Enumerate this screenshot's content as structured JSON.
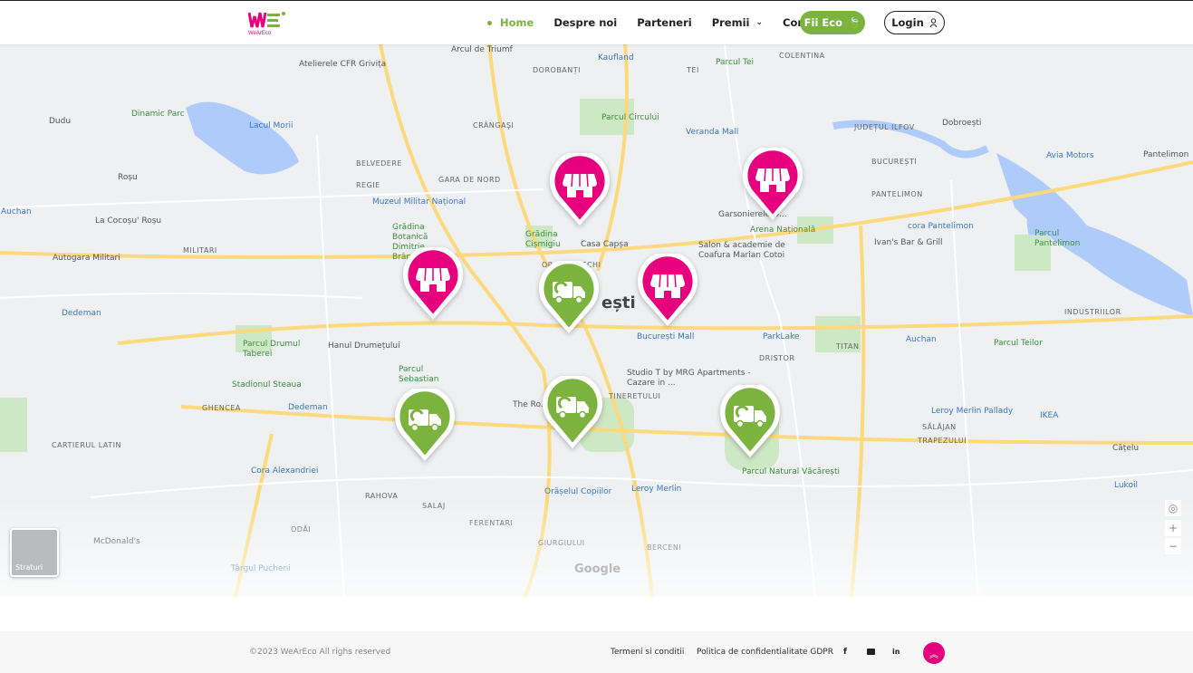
{
  "brand": {
    "name": "WeArEco",
    "pink": "#e6007e",
    "green": "#7cb33f"
  },
  "nav": {
    "items": [
      {
        "label": "Home",
        "active": true
      },
      {
        "label": "Despre noi"
      },
      {
        "label": "Parteneri"
      },
      {
        "label": "Premii",
        "has_dropdown": true
      },
      {
        "label": "Contact"
      }
    ],
    "cta": "Fii Eco",
    "login": "Login"
  },
  "map": {
    "city_label": "ești",
    "labels": [
      {
        "t": "Arcul de Triumf",
        "c": ""
      },
      {
        "t": "Kaufland",
        "c": "blue"
      },
      {
        "t": "Parcul Tei",
        "c": "green"
      },
      {
        "t": "COLENTINA",
        "c": "up"
      },
      {
        "t": "Atelierele CFR Grivița",
        "c": ""
      },
      {
        "t": "DOROBANȚI",
        "c": "up"
      },
      {
        "t": "TEI",
        "c": "up"
      },
      {
        "t": "Parcul Circului",
        "c": "green"
      },
      {
        "t": "Dinamic Parc",
        "c": "green"
      },
      {
        "t": "Lacul Morii",
        "c": "blue"
      },
      {
        "t": "CRÂNGAȘI",
        "c": "up"
      },
      {
        "t": "Veranda Mall",
        "c": "blue"
      },
      {
        "t": "JUDEȚUL ILFOV",
        "c": "up"
      },
      {
        "t": "Dobroești",
        "c": ""
      },
      {
        "t": "Dudu",
        "c": ""
      },
      {
        "t": "BELVEDERE",
        "c": "up"
      },
      {
        "t": "BUCUREȘTI",
        "c": "up"
      },
      {
        "t": "Avia Motors",
        "c": "blue"
      },
      {
        "t": "Pantelimon",
        "c": ""
      },
      {
        "t": "Roșu",
        "c": ""
      },
      {
        "t": "GARA DE NORD",
        "c": "up"
      },
      {
        "t": "REGIE",
        "c": "up"
      },
      {
        "t": "PANTELIMON",
        "c": "up"
      },
      {
        "t": "Muzeul Militar Național",
        "c": "blue"
      },
      {
        "t": "Auchan",
        "c": "blue"
      },
      {
        "t": "Garsonierele D...",
        "c": ""
      },
      {
        "t": "Arena Națională",
        "c": "green"
      },
      {
        "t": "cora Pantelimon",
        "c": "blue"
      },
      {
        "t": "La Cocoșu' Roșu",
        "c": ""
      },
      {
        "t": "Grădina Botanică Dimitrie Brândză",
        "c": "green"
      },
      {
        "t": "Grădina Cișmigiu",
        "c": "green"
      },
      {
        "t": "Casa Capșa",
        "c": ""
      },
      {
        "t": "MILITARI",
        "c": "up"
      },
      {
        "t": "Salon & academie de Coafura Marian Cotoi",
        "c": ""
      },
      {
        "t": "Ivan's Bar & Grill",
        "c": ""
      },
      {
        "t": "Parcul Pantelimon",
        "c": "green"
      },
      {
        "t": "Autogara Militari",
        "c": ""
      },
      {
        "t": "ORAȘUL VECHI",
        "c": "up"
      },
      {
        "t": "Dedeman",
        "c": "blue"
      },
      {
        "t": "INDUSTRIILOR",
        "c": "up"
      },
      {
        "t": "București Mall",
        "c": "blue"
      },
      {
        "t": "ParkLake",
        "c": "blue"
      },
      {
        "t": "Auchan",
        "c": "blue"
      },
      {
        "t": "Parcul Teilor",
        "c": "green"
      },
      {
        "t": "Parcul Drumul Taberei",
        "c": "green"
      },
      {
        "t": "Hanul Drumețului",
        "c": ""
      },
      {
        "t": "TITAN",
        "c": "up"
      },
      {
        "t": "DRISTOR",
        "c": "up"
      },
      {
        "t": "Stadionul Steaua",
        "c": "green"
      },
      {
        "t": "Parcul Sebastian",
        "c": "green"
      },
      {
        "t": "Studio T by MRG Apartments - Cazare in ...",
        "c": ""
      },
      {
        "t": "TINERETULUI",
        "c": "up"
      },
      {
        "t": "GHENCEA",
        "c": "up"
      },
      {
        "t": "The Ro...",
        "c": ""
      },
      {
        "t": "Leroy Merlin Pallady",
        "c": "blue"
      },
      {
        "t": "Dedeman",
        "c": "blue"
      },
      {
        "t": "SĂLĂJAN",
        "c": "up"
      },
      {
        "t": "IKEA",
        "c": "blue"
      },
      {
        "t": "CARTIERUL LATIN",
        "c": "up"
      },
      {
        "t": "TRAPEZULUI",
        "c": "up"
      },
      {
        "t": "Cățelu",
        "c": ""
      },
      {
        "t": "Cora Alexandriei",
        "c": "blue"
      },
      {
        "t": "Orășelul Copiilor",
        "c": "blue"
      },
      {
        "t": "Parcul Natural Văcărești",
        "c": "green"
      },
      {
        "t": "RAHOVA",
        "c": "up"
      },
      {
        "t": "Leroy Merlin",
        "c": "blue"
      },
      {
        "t": "Lukoil",
        "c": "blue"
      },
      {
        "t": "SALAJ",
        "c": "up"
      },
      {
        "t": "FERENTARI",
        "c": "up"
      },
      {
        "t": "ODĂI",
        "c": "up"
      },
      {
        "t": "McDonald's",
        "c": ""
      },
      {
        "t": "GIURGIULUI",
        "c": "up"
      },
      {
        "t": "BERCENI",
        "c": "up"
      },
      {
        "t": "Târgul Pucheni",
        "c": "blue"
      }
    ],
    "pins": [
      {
        "type": "store-icon"
      },
      {
        "type": "store-icon"
      },
      {
        "type": "store-icon"
      },
      {
        "type": "store-icon"
      },
      {
        "type": "truck-icon"
      },
      {
        "type": "truck-icon"
      },
      {
        "type": "truck-icon"
      },
      {
        "type": "truck-icon"
      }
    ],
    "layers_label": "Straturi",
    "zoom_in": "+",
    "zoom_out": "−",
    "attribution": "Google"
  },
  "footer": {
    "copyright": "©2023 WeArEco All righs reserved",
    "terms": "Termeni si conditii",
    "privacy": "Politica de confidentialitate GDPR",
    "social": [
      "facebook-icon",
      "youtube-icon",
      "linkedin-icon"
    ]
  }
}
